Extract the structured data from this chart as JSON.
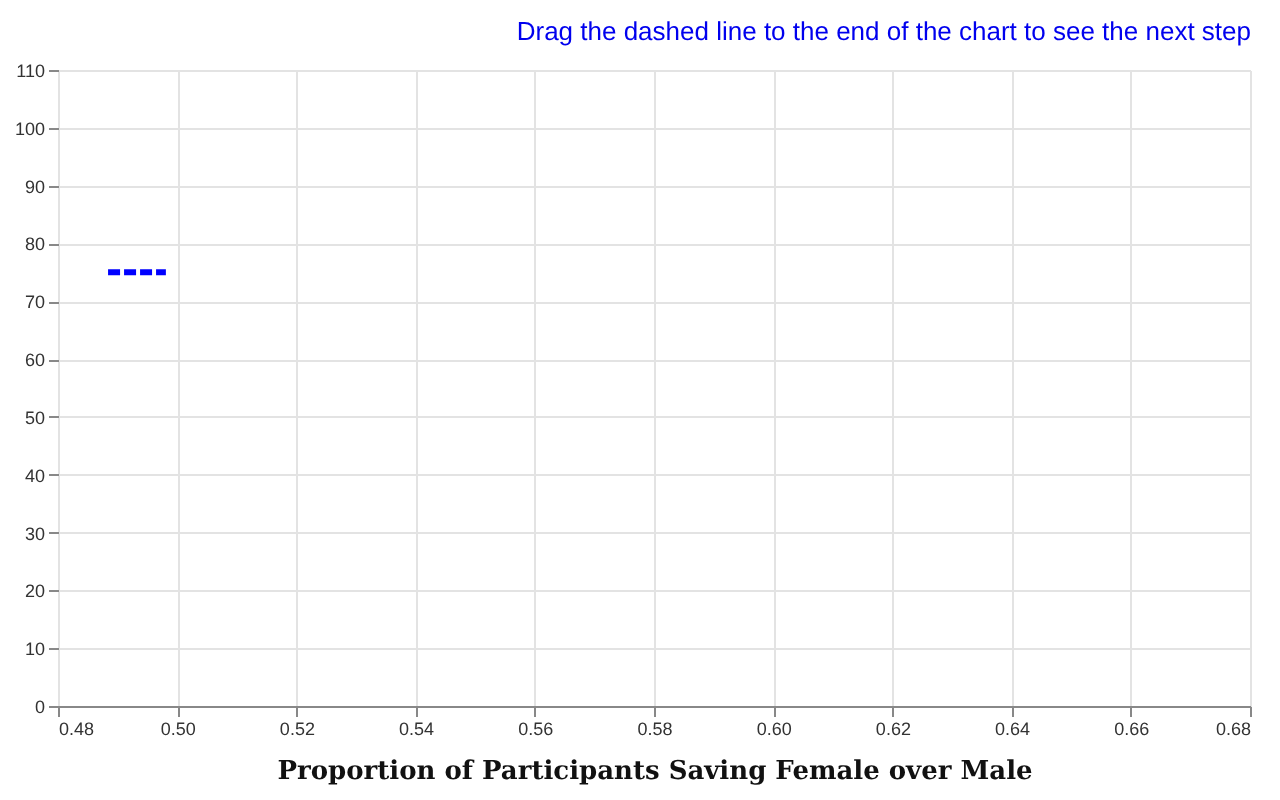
{
  "chart_data": {
    "type": "line",
    "title": "Drag the dashed line to the end of the chart to see the next step",
    "xlabel": "Proportion of Participants Saving Female over Male",
    "series": [
      {
        "color": "#0000ff",
        "x": [
          0.4884,
          0.4981
        ],
        "values": [
          75,
          75
        ]
      }
    ],
    "line_style": "dashed",
    "grid": true,
    "xlim": [
      0.48,
      0.68
    ],
    "xticks": [
      {
        "value": 0.48,
        "label": "0.48"
      },
      {
        "value": 0.5,
        "label": "0.50"
      },
      {
        "value": 0.52,
        "label": "0.52"
      },
      {
        "value": 0.54,
        "label": "0.54"
      },
      {
        "value": 0.56,
        "label": "0.56"
      },
      {
        "value": 0.58,
        "label": "0.58"
      },
      {
        "value": 0.6,
        "label": "0.60"
      },
      {
        "value": 0.62,
        "label": "0.62"
      },
      {
        "value": 0.64,
        "label": "0.64"
      },
      {
        "value": 0.66,
        "label": "0.66"
      },
      {
        "value": 0.68,
        "label": "0.68"
      }
    ],
    "ylim": [
      0,
      110
    ],
    "yticks": [
      0,
      10,
      20,
      30,
      40,
      50,
      60,
      70,
      80,
      90,
      100,
      110
    ]
  }
}
